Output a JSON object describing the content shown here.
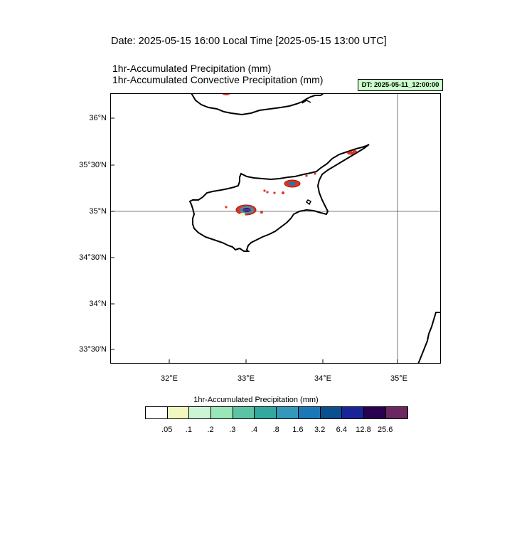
{
  "header": {
    "date_line": "Date: 2025-05-15  16:00 Local Time [2025-05-15  13:00 UTC]",
    "field1": "1hr-Accumulated Precipitation   (mm)",
    "field2": "1hr-Accumulated Convective Precipitation   (mm)",
    "dt_badge": "DT: 2025-05-11_12:00:00"
  },
  "map": {
    "lat_labels": [
      "36°N",
      "35°30'N",
      "35°N",
      "34°30'N",
      "34°N",
      "33°30'N"
    ],
    "lon_labels": [
      "32°E",
      "33°E",
      "34°E",
      "35°E"
    ],
    "extent": {
      "lon_min": 31.15,
      "lon_max": 35.55,
      "lat_min": 33.35,
      "lat_max": 36.25
    },
    "reference_lines": {
      "lat": 35.0,
      "lon": 35.0
    }
  },
  "colorbar": {
    "title": "1hr-Accumulated Precipitation  (mm)",
    "colors": [
      "#ffffff",
      "#f0f8c0",
      "#ccf5d6",
      "#99e6b8",
      "#5cc4a4",
      "#33a89e",
      "#3399bb",
      "#1a78b8",
      "#0a4f8f",
      "#1a2499",
      "#2a0050",
      "#6b2860"
    ],
    "labels": [
      ".05",
      ".1",
      ".2",
      ".3",
      ".4",
      ".8",
      "1.6",
      "3.2",
      "6.4",
      "12.8",
      "25.6"
    ]
  }
}
